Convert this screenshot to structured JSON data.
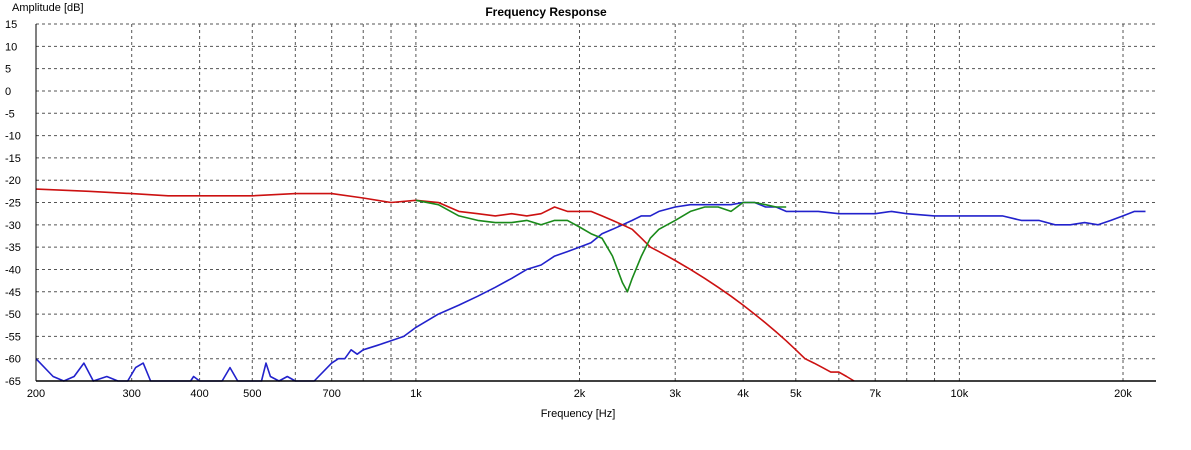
{
  "chart_data": {
    "type": "line",
    "title": "Frequency Response",
    "xlabel": "Frequency [Hz]",
    "ylabel": "Amplitude [dB]",
    "xscale": "log",
    "xlim": [
      200,
      23000
    ],
    "ylim": [
      -65,
      15
    ],
    "grid": true,
    "x_tick_labels": [
      {
        "v": 200,
        "t": "200"
      },
      {
        "v": 300,
        "t": "300"
      },
      {
        "v": 400,
        "t": "400"
      },
      {
        "v": 500,
        "t": "500"
      },
      {
        "v": 700,
        "t": "700"
      },
      {
        "v": 1000,
        "t": "1k"
      },
      {
        "v": 2000,
        "t": "2k"
      },
      {
        "v": 3000,
        "t": "3k"
      },
      {
        "v": 4000,
        "t": "4k"
      },
      {
        "v": 5000,
        "t": "5k"
      },
      {
        "v": 7000,
        "t": "7k"
      },
      {
        "v": 10000,
        "t": "10k"
      },
      {
        "v": 20000,
        "t": "20k"
      }
    ],
    "x_grid": [
      300,
      400,
      500,
      600,
      700,
      800,
      900,
      1000,
      2000,
      3000,
      4000,
      5000,
      6000,
      7000,
      8000,
      9000,
      10000,
      20000
    ],
    "y_ticks": [
      15,
      10,
      5,
      0,
      -5,
      -10,
      -15,
      -20,
      -25,
      -30,
      -35,
      -40,
      -45,
      -50,
      -55,
      -60,
      -65
    ],
    "series": [
      {
        "color": "#2222cc",
        "x": [
          200,
          215,
          225,
          235,
          245,
          255,
          270,
          283,
          295,
          305,
          315,
          325,
          340,
          385,
          390,
          400,
          440,
          455,
          470,
          490,
          520,
          530,
          540,
          560,
          580,
          600,
          650,
          700,
          720,
          740,
          760,
          780,
          800,
          850,
          900,
          950,
          1000,
          1100,
          1200,
          1300,
          1400,
          1500,
          1600,
          1700,
          1800,
          1900,
          2000,
          2100,
          2200,
          2300,
          2400,
          2500,
          2600,
          2700,
          2800,
          3000,
          3200,
          3400,
          3600,
          3800,
          4000,
          4200,
          4400,
          4600,
          4800,
          5000,
          5500,
          6000,
          6500,
          7000,
          7500,
          8000,
          9000,
          10000,
          11000,
          12000,
          13000,
          14000,
          15000,
          16000,
          17000,
          18000,
          19000,
          20000,
          21000,
          22000
        ],
        "y": [
          -60,
          -64,
          -65,
          -64,
          -61,
          -65,
          -64,
          -65,
          -65,
          -62,
          -61,
          -65,
          -65,
          -65,
          -64,
          -65,
          -65,
          -62,
          -65,
          -65,
          -65,
          -61,
          -64,
          -65,
          -64,
          -65,
          -65,
          -61,
          -60,
          -60,
          -58,
          -59,
          -58,
          -57,
          -56,
          -55,
          -53,
          -50,
          -48,
          -46,
          -44,
          -42,
          -40,
          -39,
          -37,
          -36,
          -35,
          -34,
          -32,
          -31,
          -30,
          -29,
          -28,
          -28,
          -27,
          -26,
          -25.5,
          -25.5,
          -25.5,
          -25.5,
          -25,
          -25,
          -26,
          -26,
          -27,
          -27,
          -27,
          -27.5,
          -27.5,
          -27.5,
          -27,
          -27.5,
          -28,
          -28,
          -28,
          -28,
          -29,
          -29,
          -30,
          -30,
          -29.5,
          -30,
          -29,
          -28,
          -27,
          -27
        ]
      },
      {
        "color": "#cc1111",
        "x": [
          200,
          250,
          300,
          350,
          400,
          450,
          500,
          600,
          700,
          800,
          900,
          1000,
          1100,
          1200,
          1300,
          1400,
          1500,
          1600,
          1700,
          1800,
          1900,
          2000,
          2100,
          2200,
          2300,
          2400,
          2500,
          2600,
          2700,
          2800,
          2900,
          3000,
          3200,
          3400,
          3600,
          3800,
          4000,
          4200,
          4400,
          4600,
          4800,
          5000,
          5200,
          5400,
          5600,
          5800,
          6000,
          6200,
          6400
        ],
        "y": [
          -22,
          -22.5,
          -23,
          -23.5,
          -23.5,
          -23.5,
          -23.5,
          -23,
          -23,
          -24,
          -25,
          -24.5,
          -25,
          -27,
          -27.5,
          -28,
          -27.5,
          -28,
          -27.5,
          -26,
          -27,
          -27,
          -27,
          -28,
          -29,
          -30,
          -31,
          -33,
          -35,
          -36,
          -37,
          -38,
          -40,
          -42,
          -44,
          -46,
          -48,
          -50,
          -52,
          -54,
          -56,
          -58,
          -60,
          -61,
          -62,
          -63,
          -63,
          -64,
          -65
        ]
      },
      {
        "color": "#1a8a1a",
        "x": [
          1000,
          1100,
          1200,
          1300,
          1400,
          1500,
          1600,
          1700,
          1800,
          1900,
          2000,
          2100,
          2200,
          2300,
          2400,
          2450,
          2500,
          2600,
          2700,
          2800,
          3000,
          3200,
          3400,
          3600,
          3800,
          4000,
          4200,
          4400,
          4600,
          4800
        ],
        "y": [
          -24.5,
          -25.5,
          -28,
          -29,
          -29.5,
          -29.5,
          -29,
          -30,
          -29,
          -29,
          -30.5,
          -32,
          -33,
          -37,
          -43,
          -45,
          -42,
          -37,
          -33,
          -31,
          -29,
          -27,
          -26,
          -26,
          -27,
          -25,
          -25,
          -25.5,
          -26,
          -26
        ]
      }
    ]
  }
}
